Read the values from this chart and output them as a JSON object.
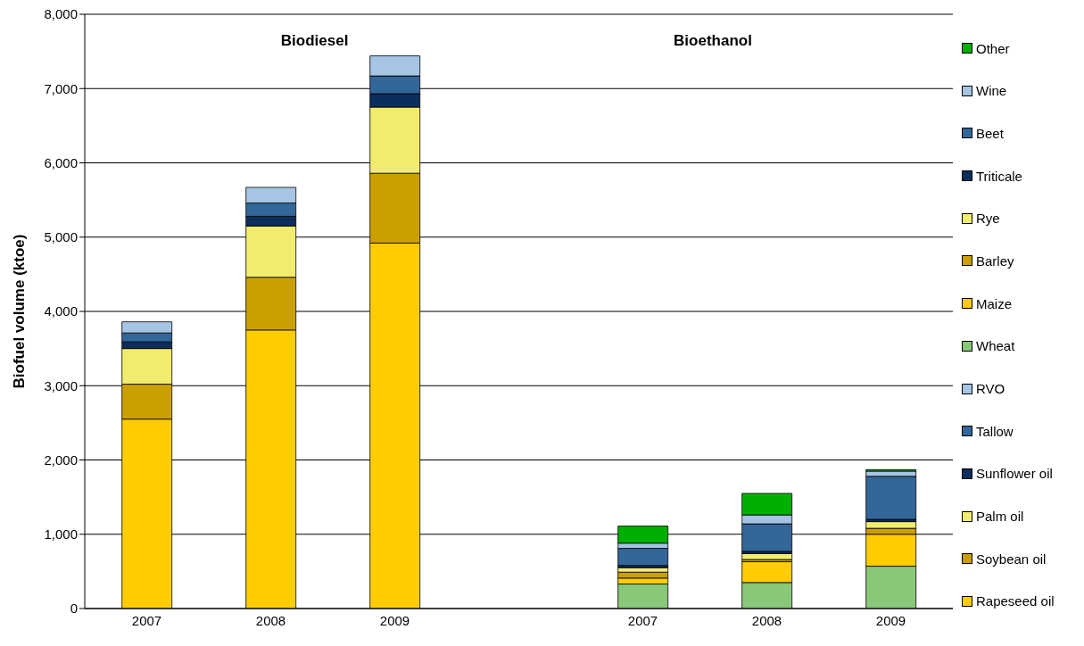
{
  "chart_data": {
    "type": "bar",
    "stacked": true,
    "ylabel": "Biofuel volume (ktoe)",
    "annotations": [
      "Biodiesel",
      "Bioethanol"
    ],
    "categories": [
      "2007",
      "2008",
      "2009",
      null,
      "2007",
      "2008",
      "2009"
    ],
    "ylim": [
      0,
      8000
    ],
    "yticks": [
      0,
      {
        "value": 1000,
        "label": "1,000"
      },
      {
        "value": 2000,
        "label": "2,000"
      },
      {
        "value": 3000,
        "label": "3,000"
      },
      {
        "value": 4000,
        "label": "4,000"
      },
      {
        "value": 5000,
        "label": "5,000"
      },
      {
        "value": 6000,
        "label": "6,000"
      },
      {
        "value": 7000,
        "label": "7,000"
      },
      {
        "value": 8000,
        "label": "8,000"
      }
    ],
    "grid": "y",
    "legend": "right",
    "series": [
      {
        "name": "Rapeseed oil",
        "color": "#ffcc00",
        "values": [
          2550,
          3750,
          4920,
          null,
          null,
          null,
          null
        ]
      },
      {
        "name": "Soybean oil",
        "color": "#cc9f00",
        "values": [
          470,
          710,
          940,
          null,
          null,
          null,
          null
        ]
      },
      {
        "name": "Palm oil",
        "color": "#f2ec6e",
        "values": [
          480,
          690,
          890,
          null,
          null,
          null,
          null
        ]
      },
      {
        "name": "Sunflower oil",
        "color": "#0b2e5c",
        "values": [
          90,
          130,
          180,
          null,
          null,
          null,
          null
        ]
      },
      {
        "name": "Tallow",
        "color": "#336699",
        "values": [
          120,
          180,
          240,
          null,
          null,
          null,
          null
        ]
      },
      {
        "name": "RVO",
        "color": "#a6c4e4",
        "values": [
          150,
          210,
          270,
          null,
          null,
          null,
          null
        ]
      },
      {
        "name": "Wheat",
        "color": "#88c878",
        "values": [
          null,
          null,
          null,
          null,
          330,
          350,
          570
        ]
      },
      {
        "name": "Maize",
        "color": "#ffcc00",
        "values": [
          null,
          null,
          null,
          null,
          80,
          280,
          430
        ]
      },
      {
        "name": "Barley",
        "color": "#cc9f00",
        "values": [
          null,
          null,
          null,
          null,
          80,
          30,
          80
        ]
      },
      {
        "name": "Rye",
        "color": "#f2ec6e",
        "values": [
          null,
          null,
          null,
          null,
          60,
          80,
          90
        ]
      },
      {
        "name": "Triticale",
        "color": "#0b2e5c",
        "values": [
          null,
          null,
          null,
          null,
          30,
          30,
          30
        ]
      },
      {
        "name": "Beet",
        "color": "#336699",
        "values": [
          null,
          null,
          null,
          null,
          230,
          370,
          580
        ]
      },
      {
        "name": "Wine",
        "color": "#a6c4e4",
        "values": [
          null,
          null,
          null,
          null,
          70,
          120,
          70
        ]
      },
      {
        "name": "Other",
        "color": "#00b000",
        "values": [
          null,
          null,
          null,
          null,
          230,
          290,
          20
        ]
      }
    ]
  }
}
